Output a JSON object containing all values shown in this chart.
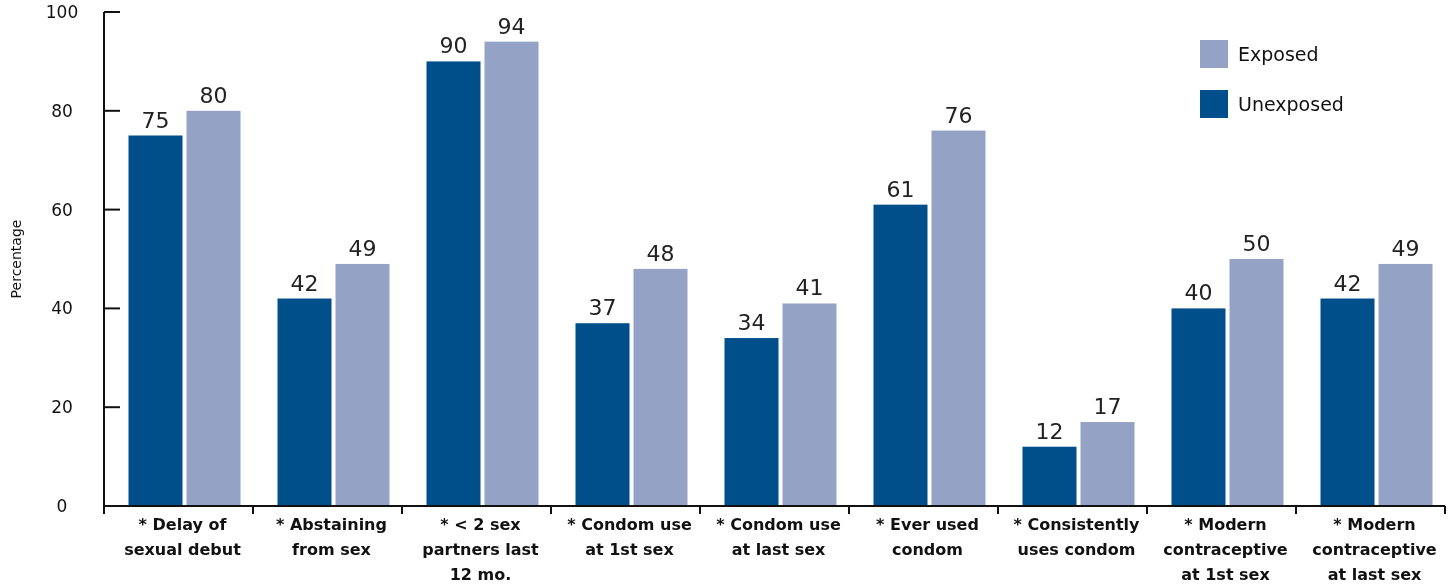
{
  "chart_data": {
    "type": "bar",
    "ylabel": "Percentage",
    "categories": [
      "* Delay of sexual debut",
      "* Abstaining from sex",
      "* < 2 sex partners last 12 mo.",
      "* Condom use at 1st sex",
      "* Condom use at last sex",
      "* Ever used condom",
      "* Consistently uses condom",
      "* Modern contraceptive at 1st sex",
      "* Modern contraceptive at last sex"
    ],
    "series": [
      {
        "name": "Unexposed",
        "color": "#004f8b",
        "values": [
          75,
          42,
          90,
          37,
          34,
          61,
          12,
          40,
          42
        ]
      },
      {
        "name": "Exposed",
        "color": "#94a3c5",
        "values": [
          80,
          49,
          94,
          48,
          41,
          76,
          17,
          50,
          49
        ]
      }
    ],
    "ylim": [
      0,
      100
    ],
    "yticks": [
      0,
      20,
      40,
      60,
      80,
      100
    ],
    "data_labels": true,
    "legend": "top right"
  }
}
